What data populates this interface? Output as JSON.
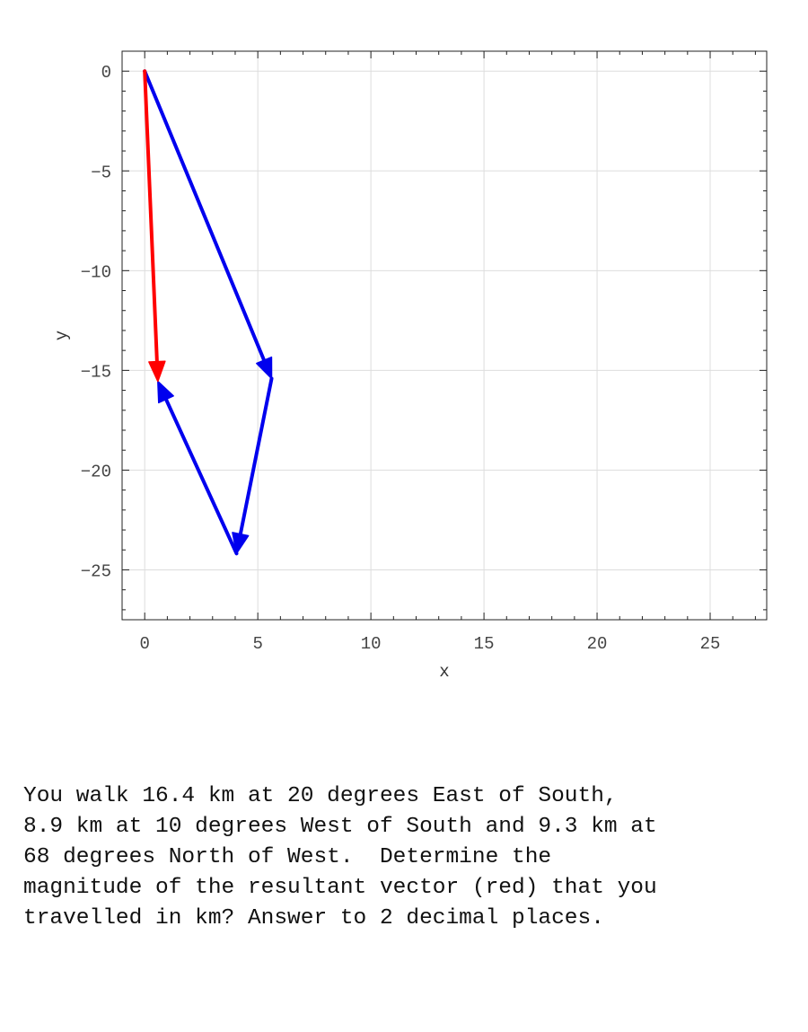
{
  "chart_data": {
    "type": "vector-diagram",
    "xlabel": "x",
    "ylabel": "y",
    "xlim": [
      -1,
      27.5
    ],
    "ylim": [
      -27.5,
      1
    ],
    "xticks": [
      0,
      5,
      10,
      15,
      20,
      25
    ],
    "yticks": [
      0,
      -5,
      -10,
      -15,
      -20,
      -25
    ],
    "grid": true,
    "vectors": [
      {
        "from": [
          0,
          0
        ],
        "to": [
          5.61,
          -15.41
        ],
        "color": "#0000ee"
      },
      {
        "from": [
          5.61,
          -15.41
        ],
        "to": [
          4.06,
          -24.18
        ],
        "color": "#0000ee"
      },
      {
        "from": [
          4.06,
          -24.18
        ],
        "to": [
          0.58,
          -15.55
        ],
        "color": "#0000ee"
      },
      {
        "from": [
          0,
          0
        ],
        "to": [
          0.58,
          -15.55
        ],
        "color": "#ff0000"
      }
    ]
  },
  "question": {
    "lines": [
      "You walk 16.4 km at 20 degrees East of South,",
      "8.9 km at 10 degrees West of South and 9.3 km at",
      "68 degrees North of West.  Determine the",
      "magnitude of the resultant vector (red) that you",
      "travelled in km? Answer to 2 decimal places."
    ]
  }
}
